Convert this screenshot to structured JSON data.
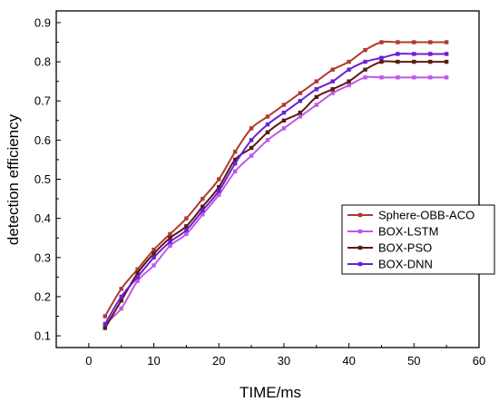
{
  "chart_data": {
    "type": "line",
    "title": "",
    "xlabel": "TIME/ms",
    "ylabel": "detection efficiency",
    "xlim": [
      -5,
      60
    ],
    "ylim": [
      0.07,
      0.93
    ],
    "xticks": [
      0,
      10,
      20,
      30,
      40,
      50,
      60
    ],
    "yticks": [
      0.1,
      0.2,
      0.3,
      0.4,
      0.5,
      0.6,
      0.7,
      0.8,
      0.9
    ],
    "xtick_labels": [
      "0",
      "10",
      "20",
      "30",
      "40",
      "50",
      "60"
    ],
    "ytick_labels": [
      "0.1",
      "0.2",
      "0.3",
      "0.4",
      "0.5",
      "0.6",
      "0.7",
      "0.8",
      "0.9"
    ],
    "grid": false,
    "legend_position": "right",
    "x": [
      2.5,
      5,
      7.5,
      10,
      12.5,
      15,
      17.5,
      20,
      22.5,
      25,
      27.5,
      30,
      32.5,
      35,
      37.5,
      40,
      42.5,
      45,
      47.5,
      50,
      52.5,
      55
    ],
    "series": [
      {
        "name": "Sphere-OBB-ACO",
        "color": "#b03a2e",
        "values": [
          0.15,
          0.22,
          0.27,
          0.32,
          0.36,
          0.4,
          0.45,
          0.5,
          0.57,
          0.63,
          0.66,
          0.69,
          0.72,
          0.75,
          0.78,
          0.8,
          0.83,
          0.85,
          0.85,
          0.85,
          0.85,
          0.85
        ]
      },
      {
        "name": "BOX-LSTM",
        "color": "#c058e8",
        "values": [
          0.13,
          0.17,
          0.24,
          0.28,
          0.33,
          0.36,
          0.41,
          0.46,
          0.52,
          0.56,
          0.6,
          0.63,
          0.66,
          0.69,
          0.72,
          0.74,
          0.76,
          0.76,
          0.76,
          0.76,
          0.76,
          0.76
        ]
      },
      {
        "name": "BOX-PSO",
        "color": "#5c1a12",
        "values": [
          0.12,
          0.19,
          0.26,
          0.31,
          0.35,
          0.38,
          0.43,
          0.48,
          0.55,
          0.58,
          0.62,
          0.65,
          0.67,
          0.71,
          0.73,
          0.75,
          0.78,
          0.8,
          0.8,
          0.8,
          0.8,
          0.8
        ]
      },
      {
        "name": "BOX-DNN",
        "color": "#6a1fd6",
        "values": [
          0.13,
          0.2,
          0.25,
          0.3,
          0.34,
          0.37,
          0.42,
          0.47,
          0.54,
          0.6,
          0.64,
          0.67,
          0.7,
          0.73,
          0.75,
          0.78,
          0.8,
          0.81,
          0.82,
          0.82,
          0.82,
          0.82
        ]
      }
    ]
  }
}
